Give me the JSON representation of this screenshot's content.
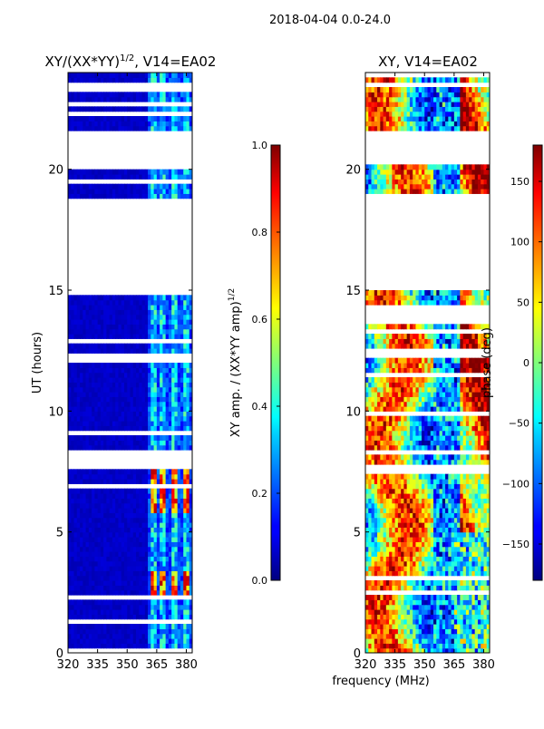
{
  "figure": {
    "suptitle": "2018-04-04 0.0-24.0",
    "shared_xlabel": "frequency (MHz)"
  },
  "chart_data": [
    {
      "type": "heatmap",
      "title": "XY/(XX*YY)",
      "title_exponent": "1/2",
      "title_suffix": ", V14=EA02",
      "xlabel": "frequency (MHz)",
      "ylabel": "UT (hours)",
      "xlim": [
        320,
        383
      ],
      "ylim": [
        0,
        24
      ],
      "xticks": [
        320,
        335,
        350,
        365,
        380
      ],
      "yticks": [
        0,
        5,
        10,
        15,
        20
      ],
      "background_value": 0.05,
      "bright_bands_mhz": [
        [
          362,
          365
        ],
        [
          367,
          370
        ],
        [
          373,
          375
        ],
        [
          378,
          381
        ]
      ],
      "hot_hours": [
        [
          2.2,
          3.4
        ],
        [
          5.9,
          7.6
        ]
      ],
      "data_gaps_hours": [
        [
          15.0,
          18.9
        ],
        [
          20.2,
          21.5
        ]
      ],
      "colorbar": {
        "label": "XY amp. / (XX*YY amp)",
        "label_exponent": "1/2",
        "range": [
          0.0,
          1.0
        ],
        "ticks": [
          "0.0",
          "0.2",
          "0.4",
          "0.6",
          "0.8",
          "1.0"
        ]
      }
    },
    {
      "type": "heatmap",
      "title": "XY, V14=EA02",
      "xlabel": "frequency (MHz)",
      "ylabel": "",
      "xlim": [
        320,
        383
      ],
      "ylim": [
        0,
        24
      ],
      "xticks": [
        320,
        335,
        350,
        365,
        380
      ],
      "yticks": [
        0,
        5,
        10,
        15,
        20
      ],
      "data_gaps_hours": [
        [
          15.0,
          18.9
        ],
        [
          20.2,
          21.5
        ]
      ],
      "colorbar": {
        "label": "phase (deg)",
        "range": [
          -180,
          180
        ],
        "ticks": [
          "−150",
          "−100",
          "−50",
          "0",
          "50",
          "100",
          "150"
        ]
      }
    }
  ]
}
